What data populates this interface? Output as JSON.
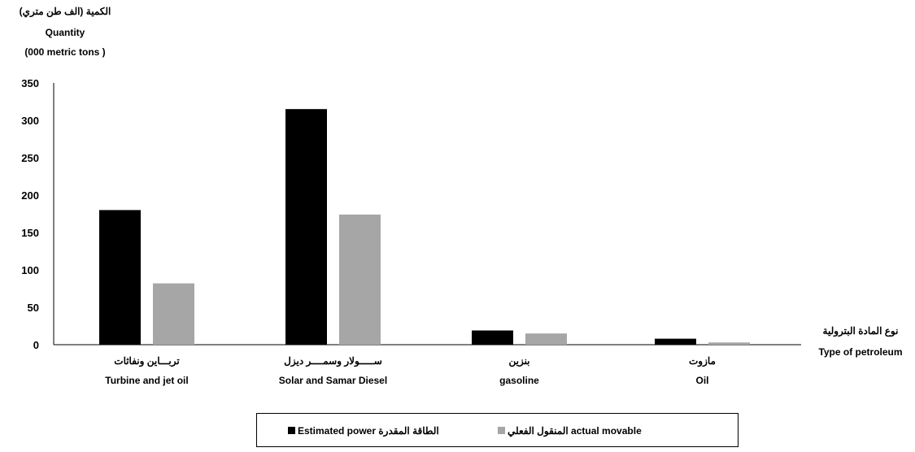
{
  "chart_data": {
    "type": "bar",
    "y_title_lines": [
      "الكمية (الف طن متري)",
      "Quantity",
      "(000 metric tons )"
    ],
    "x_title_lines": [
      "نوع المادة البترولية",
      "Type of petroleum"
    ],
    "categories": [
      {
        "ar": "تربـــاين ونفاثات",
        "en": "Turbine and jet oil"
      },
      {
        "ar": "ســـــولار وسمــــر ديزل",
        "en": "Solar and Samar Diesel"
      },
      {
        "ar": "بنزين",
        "en": "gasoline"
      },
      {
        "ar": "مازوت",
        "en": "Oil"
      }
    ],
    "series": [
      {
        "name": "Estimated power الطاقة المقدرة",
        "color": "#000000",
        "values": [
          180,
          315,
          19,
          8
        ]
      },
      {
        "name": "المنقول الفعلي actual movable",
        "color": "#a6a6a6",
        "values": [
          82,
          174,
          15,
          3
        ]
      }
    ],
    "yticks": [
      0,
      50,
      100,
      150,
      200,
      250,
      300,
      350
    ],
    "ylim": [
      0,
      350
    ],
    "grid": false,
    "legend_position": "bottom"
  }
}
